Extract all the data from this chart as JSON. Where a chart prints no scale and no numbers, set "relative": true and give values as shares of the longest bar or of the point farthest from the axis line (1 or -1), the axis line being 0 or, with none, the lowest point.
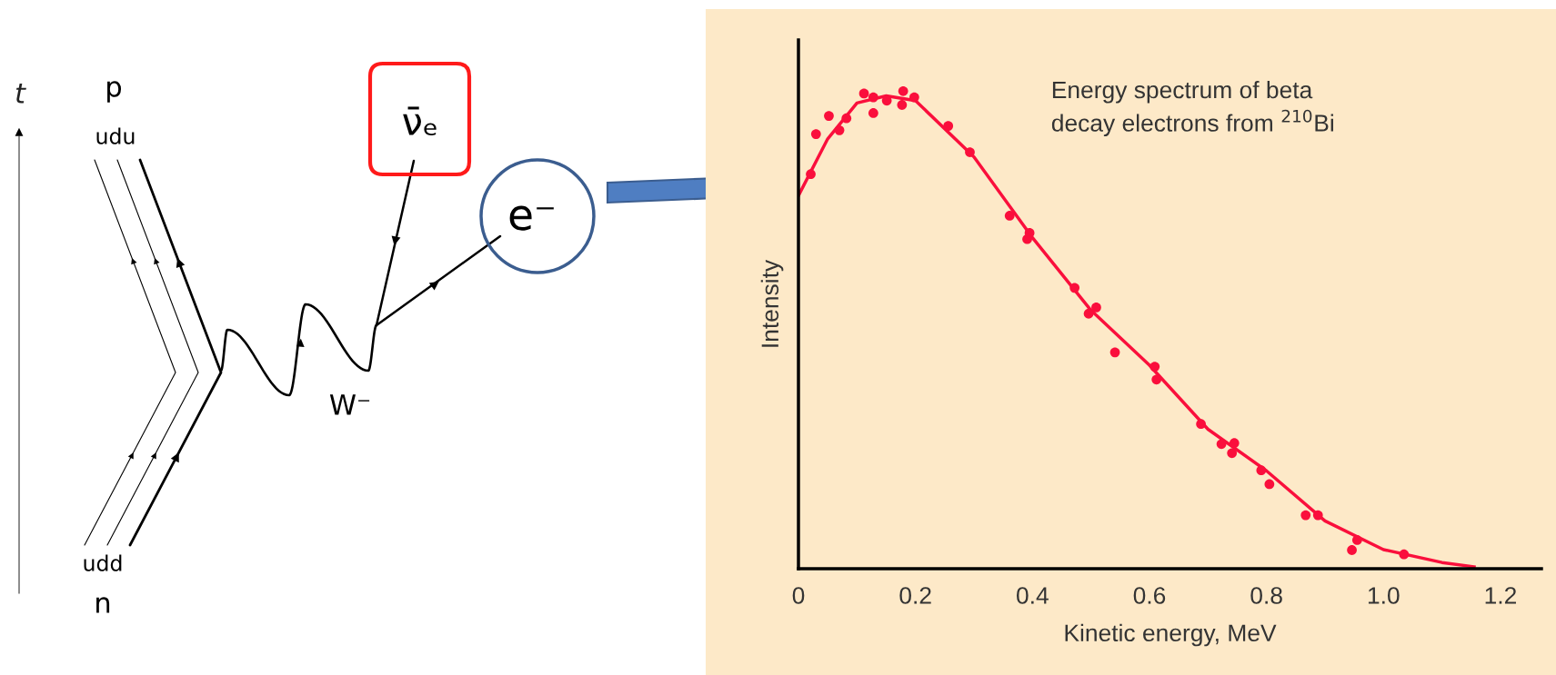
{
  "chart_data": [
    {
      "type": "other",
      "annotations": [
        "t",
        "p",
        "udu",
        "udd",
        "n",
        "W⁻",
        "ν̄ₑ",
        "e⁻"
      ]
    },
    {
      "type": "scatter",
      "title": "Energy spectrum of beta\ndecay electrons from $^{210}$Bi",
      "xlabel": "Kinetic energy, MeV",
      "ylabel": "Intensity",
      "relative": true,
      "xlim": [
        0,
        1.27
      ],
      "xticks": [
        {
          "value": 0,
          "label": "0"
        },
        0.2,
        0.4,
        0.6,
        0.8,
        {
          "value": 1.0,
          "label": "1.0"
        },
        1.2
      ],
      "grid": false,
      "series": [
        {
          "type": "scatter",
          "marker": "circle",
          "color": "#fa0f3c",
          "x": [
            0.021,
            0.03,
            0.052,
            0.07,
            0.082,
            0.112,
            0.128,
            0.128,
            0.151,
            0.177,
            0.179,
            0.198,
            0.256,
            0.293,
            0.361,
            0.395,
            0.391,
            0.472,
            0.509,
            0.496,
            0.541,
            0.609,
            0.612,
            0.688,
            0.723,
            0.745,
            0.741,
            0.791,
            0.805,
            0.867,
            0.888,
            0.955,
            0.946,
            1.035
          ],
          "values": [
            0.826,
            0.91,
            0.948,
            0.918,
            0.943,
            0.995,
            0.954,
            0.987,
            0.98,
            0.971,
            1.0,
            0.987,
            0.927,
            0.872,
            0.739,
            0.703,
            0.69,
            0.588,
            0.547,
            0.534,
            0.453,
            0.423,
            0.396,
            0.303,
            0.261,
            0.263,
            0.242,
            0.206,
            0.177,
            0.112,
            0.112,
            0.06,
            0.039,
            0.03
          ]
        },
        {
          "type": "line",
          "color": "#fa0f3c",
          "x": [
            0,
            0.05,
            0.1,
            0.15,
            0.2,
            0.3,
            0.4,
            0.5,
            0.6,
            0.7,
            0.8,
            0.9,
            1.0,
            1.1,
            1.155
          ],
          "values": [
            0.781,
            0.9,
            0.975,
            0.99,
            0.98,
            0.862,
            0.693,
            0.541,
            0.426,
            0.292,
            0.205,
            0.1,
            0.04,
            0.013,
            0.004
          ]
        }
      ]
    }
  ]
}
